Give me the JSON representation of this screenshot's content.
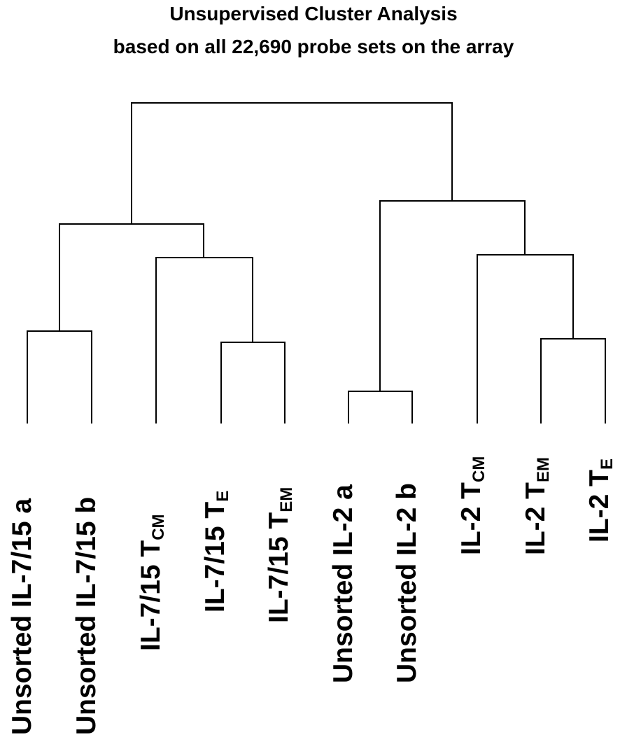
{
  "title": {
    "line1": "Unsupervised Cluster Analysis",
    "line2": "based on all 22,690 probe sets on the array"
  },
  "leaves": [
    {
      "main": "Unsorted IL-7/15 a",
      "sub": ""
    },
    {
      "main": "Unsorted IL-7/15 b",
      "sub": ""
    },
    {
      "main": "IL-7/15 T",
      "sub": "CM"
    },
    {
      "main": "IL-7/15 T",
      "sub": "E"
    },
    {
      "main": "IL-7/15 T",
      "sub": "EM"
    },
    {
      "main": "Unsorted IL-2 a",
      "sub": ""
    },
    {
      "main": "Unsorted IL-2 b",
      "sub": ""
    },
    {
      "main": "IL-2 T",
      "sub": "CM"
    },
    {
      "main": "IL-2 T",
      "sub": "EM"
    },
    {
      "main": "IL-2 T",
      "sub": "E"
    }
  ]
}
